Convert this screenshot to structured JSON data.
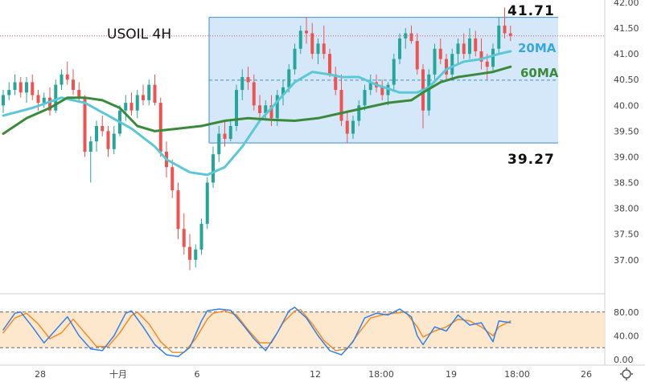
{
  "chart_data": {
    "type": "candlestick",
    "symbol_label": "USOIL 4H",
    "price_axis": {
      "min": 36.7,
      "max": 42.0,
      "ticks": [
        "42.00",
        "41.50",
        "41.00",
        "40.50",
        "40.00",
        "39.50",
        "39.00",
        "38.50",
        "38.00",
        "37.50",
        "37.00"
      ]
    },
    "time_axis": {
      "labels": [
        "28",
        "十月",
        "6",
        "12",
        "18:00",
        "19",
        "18:00",
        "26"
      ]
    },
    "range_box": {
      "top_label": "41.71",
      "bottom_label": "39.27",
      "top": 41.71,
      "bottom": 39.27
    },
    "current_price": 41.35,
    "ma_labels": {
      "ma20": "20MA",
      "ma60": "60MA"
    },
    "colors": {
      "up": "#26a69a",
      "down": "#ef5350",
      "ma20": "#5bc8d8",
      "ma60": "#3b8a3b",
      "box": "#cce4f8",
      "k_line": "#2f80ed",
      "d_line": "#f28c28"
    },
    "candles": [
      [
        40.0,
        40.3,
        39.85,
        40.2
      ],
      [
        40.2,
        40.45,
        40.1,
        40.3
      ],
      [
        40.3,
        40.6,
        40.2,
        40.45
      ],
      [
        40.45,
        40.55,
        40.15,
        40.25
      ],
      [
        40.25,
        40.55,
        40.05,
        40.45
      ],
      [
        40.45,
        40.6,
        40.1,
        40.2
      ],
      [
        40.2,
        40.3,
        39.9,
        40.05
      ],
      [
        40.05,
        40.25,
        39.95,
        40.15
      ],
      [
        40.15,
        40.35,
        39.8,
        39.9
      ],
      [
        39.9,
        40.5,
        39.85,
        40.4
      ],
      [
        40.4,
        40.7,
        40.3,
        40.6
      ],
      [
        40.6,
        40.85,
        40.4,
        40.5
      ],
      [
        40.5,
        40.7,
        40.2,
        40.3
      ],
      [
        40.3,
        40.45,
        40.05,
        40.15
      ],
      [
        40.15,
        40.2,
        39.0,
        39.1
      ],
      [
        39.1,
        39.4,
        38.5,
        39.3
      ],
      [
        39.3,
        39.7,
        39.1,
        39.6
      ],
      [
        39.6,
        39.8,
        39.4,
        39.5
      ],
      [
        39.5,
        39.6,
        39.0,
        39.15
      ],
      [
        39.15,
        39.6,
        39.05,
        39.45
      ],
      [
        39.45,
        40.0,
        39.4,
        39.9
      ],
      [
        39.9,
        40.2,
        39.7,
        40.05
      ],
      [
        40.05,
        40.25,
        39.8,
        39.9
      ],
      [
        39.9,
        40.3,
        39.75,
        40.2
      ],
      [
        40.2,
        40.4,
        40.0,
        40.1
      ],
      [
        40.1,
        40.5,
        40.0,
        40.4
      ],
      [
        40.4,
        40.6,
        40.0,
        40.05
      ],
      [
        40.05,
        40.15,
        39.0,
        39.1
      ],
      [
        39.1,
        39.3,
        38.6,
        38.8
      ],
      [
        38.8,
        38.95,
        38.2,
        38.35
      ],
      [
        38.35,
        38.5,
        37.4,
        37.6
      ],
      [
        37.6,
        37.9,
        37.1,
        37.25
      ],
      [
        37.25,
        37.5,
        36.8,
        37.0
      ],
      [
        37.0,
        37.3,
        36.85,
        37.2
      ],
      [
        37.2,
        37.8,
        37.1,
        37.7
      ],
      [
        37.7,
        38.6,
        37.6,
        38.5
      ],
      [
        38.5,
        39.2,
        38.4,
        39.05
      ],
      [
        39.05,
        39.6,
        38.9,
        39.45
      ],
      [
        39.45,
        39.7,
        39.2,
        39.35
      ],
      [
        39.35,
        39.7,
        39.3,
        39.6
      ],
      [
        39.6,
        40.4,
        39.5,
        40.3
      ],
      [
        40.3,
        40.7,
        40.1,
        40.55
      ],
      [
        40.55,
        40.75,
        40.3,
        40.45
      ],
      [
        40.45,
        40.6,
        39.9,
        40.0
      ],
      [
        40.0,
        40.2,
        39.7,
        39.85
      ],
      [
        39.85,
        40.1,
        39.7,
        40.0
      ],
      [
        40.0,
        40.2,
        39.6,
        39.75
      ],
      [
        39.75,
        40.3,
        39.6,
        40.2
      ],
      [
        40.2,
        40.5,
        40.0,
        40.35
      ],
      [
        40.35,
        40.8,
        40.25,
        40.7
      ],
      [
        40.7,
        41.2,
        40.6,
        41.1
      ],
      [
        41.1,
        41.55,
        41.0,
        41.45
      ],
      [
        41.45,
        41.71,
        41.2,
        41.4
      ],
      [
        41.4,
        41.6,
        40.9,
        41.0
      ],
      [
        41.0,
        41.3,
        40.8,
        41.2
      ],
      [
        41.2,
        41.55,
        40.9,
        41.0
      ],
      [
        41.0,
        41.1,
        40.55,
        40.6
      ],
      [
        40.6,
        40.75,
        40.2,
        40.3
      ],
      [
        40.3,
        40.6,
        39.6,
        39.7
      ],
      [
        39.7,
        39.9,
        39.27,
        39.45
      ],
      [
        39.45,
        39.8,
        39.35,
        39.7
      ],
      [
        39.7,
        40.1,
        39.6,
        40.0
      ],
      [
        40.0,
        40.4,
        39.9,
        40.3
      ],
      [
        40.3,
        40.6,
        40.2,
        40.45
      ],
      [
        40.45,
        40.6,
        40.25,
        40.35
      ],
      [
        40.35,
        40.5,
        40.1,
        40.2
      ],
      [
        40.2,
        40.45,
        40.0,
        40.4
      ],
      [
        40.4,
        41.0,
        40.3,
        40.9
      ],
      [
        40.9,
        41.4,
        40.8,
        41.3
      ],
      [
        41.3,
        41.5,
        41.1,
        41.4
      ],
      [
        41.4,
        41.55,
        41.2,
        41.25
      ],
      [
        41.25,
        41.4,
        40.6,
        40.7
      ],
      [
        40.7,
        40.8,
        39.55,
        39.9
      ],
      [
        39.9,
        40.7,
        39.8,
        40.6
      ],
      [
        40.6,
        41.2,
        40.5,
        41.1
      ],
      [
        41.1,
        41.3,
        40.8,
        40.9
      ],
      [
        40.9,
        41.0,
        40.5,
        40.6
      ],
      [
        40.6,
        41.1,
        40.5,
        41.0
      ],
      [
        41.0,
        41.3,
        40.8,
        41.2
      ],
      [
        41.2,
        41.4,
        40.9,
        41.0
      ],
      [
        41.0,
        41.5,
        40.9,
        41.3
      ],
      [
        41.3,
        41.45,
        40.95,
        41.05
      ],
      [
        41.05,
        41.3,
        40.7,
        40.85
      ],
      [
        40.85,
        41.0,
        40.5,
        40.75
      ],
      [
        40.75,
        41.2,
        40.65,
        41.1
      ],
      [
        41.1,
        41.71,
        41.0,
        41.55
      ],
      [
        41.55,
        41.9,
        41.3,
        41.4
      ],
      [
        41.4,
        41.55,
        41.25,
        41.35
      ]
    ],
    "ma20": [
      [
        0,
        39.8
      ],
      [
        5,
        39.95
      ],
      [
        10,
        40.15
      ],
      [
        14,
        40.05
      ],
      [
        18,
        39.8
      ],
      [
        22,
        39.55
      ],
      [
        26,
        39.2
      ],
      [
        28,
        38.95
      ],
      [
        32,
        38.7
      ],
      [
        35,
        38.65
      ],
      [
        38,
        38.8
      ],
      [
        41,
        39.2
      ],
      [
        44,
        39.7
      ],
      [
        48,
        40.2
      ],
      [
        50,
        40.45
      ],
      [
        53,
        40.65
      ],
      [
        56,
        40.6
      ],
      [
        58,
        40.55
      ],
      [
        61,
        40.55
      ],
      [
        64,
        40.4
      ],
      [
        68,
        40.25
      ],
      [
        71,
        40.25
      ],
      [
        73,
        40.35
      ],
      [
        76,
        40.7
      ],
      [
        79,
        40.85
      ],
      [
        82,
        40.9
      ],
      [
        85,
        41.0
      ],
      [
        87,
        41.05
      ]
    ],
    "ma60": [
      [
        0,
        39.45
      ],
      [
        4,
        39.75
      ],
      [
        8,
        39.95
      ],
      [
        11,
        40.15
      ],
      [
        14,
        40.15
      ],
      [
        17,
        40.1
      ],
      [
        20,
        39.95
      ],
      [
        23,
        39.6
      ],
      [
        26,
        39.5
      ],
      [
        30,
        39.55
      ],
      [
        34,
        39.6
      ],
      [
        38,
        39.7
      ],
      [
        42,
        39.75
      ],
      [
        46,
        39.72
      ],
      [
        50,
        39.7
      ],
      [
        54,
        39.75
      ],
      [
        58,
        39.85
      ],
      [
        62,
        39.95
      ],
      [
        66,
        40.05
      ],
      [
        70,
        40.1
      ],
      [
        72,
        40.25
      ],
      [
        75,
        40.45
      ],
      [
        78,
        40.55
      ],
      [
        81,
        40.6
      ],
      [
        84,
        40.65
      ],
      [
        87,
        40.75
      ]
    ],
    "stochastic": {
      "levels": [
        {
          "value": 80,
          "label": "80.00"
        },
        {
          "value": 40,
          "label": "40.00"
        },
        {
          "value": 0,
          "label": "0.00"
        }
      ],
      "bands": [
        80,
        20
      ],
      "k": [
        [
          0,
          50
        ],
        [
          2,
          78
        ],
        [
          3,
          80
        ],
        [
          5,
          55
        ],
        [
          7,
          28
        ],
        [
          9,
          50
        ],
        [
          11,
          72
        ],
        [
          13,
          40
        ],
        [
          15,
          18
        ],
        [
          17,
          15
        ],
        [
          19,
          40
        ],
        [
          21,
          78
        ],
        [
          22,
          82
        ],
        [
          24,
          55
        ],
        [
          26,
          25
        ],
        [
          28,
          8
        ],
        [
          30,
          5
        ],
        [
          32,
          20
        ],
        [
          34,
          65
        ],
        [
          35,
          82
        ],
        [
          37,
          85
        ],
        [
          39,
          83
        ],
        [
          41,
          60
        ],
        [
          43,
          35
        ],
        [
          45,
          15
        ],
        [
          47,
          45
        ],
        [
          49,
          82
        ],
        [
          50,
          88
        ],
        [
          52,
          70
        ],
        [
          54,
          40
        ],
        [
          56,
          15
        ],
        [
          58,
          8
        ],
        [
          60,
          30
        ],
        [
          62,
          70
        ],
        [
          64,
          78
        ],
        [
          66,
          75
        ],
        [
          68,
          85
        ],
        [
          70,
          72
        ],
        [
          71,
          40
        ],
        [
          72,
          25
        ],
        [
          74,
          55
        ],
        [
          76,
          48
        ],
        [
          78,
          75
        ],
        [
          80,
          58
        ],
        [
          82,
          62
        ],
        [
          84,
          30
        ],
        [
          85,
          65
        ],
        [
          87,
          62
        ]
      ],
      "d": [
        [
          0,
          45
        ],
        [
          2,
          70
        ],
        [
          4,
          78
        ],
        [
          6,
          60
        ],
        [
          8,
          35
        ],
        [
          10,
          45
        ],
        [
          12,
          68
        ],
        [
          14,
          45
        ],
        [
          16,
          22
        ],
        [
          18,
          22
        ],
        [
          20,
          45
        ],
        [
          22,
          74
        ],
        [
          23,
          80
        ],
        [
          25,
          60
        ],
        [
          27,
          30
        ],
        [
          29,
          12
        ],
        [
          31,
          12
        ],
        [
          33,
          35
        ],
        [
          35,
          68
        ],
        [
          36,
          78
        ],
        [
          38,
          82
        ],
        [
          40,
          75
        ],
        [
          42,
          50
        ],
        [
          44,
          28
        ],
        [
          46,
          28
        ],
        [
          48,
          62
        ],
        [
          50,
          82
        ],
        [
          51,
          84
        ],
        [
          53,
          60
        ],
        [
          55,
          32
        ],
        [
          57,
          15
        ],
        [
          59,
          18
        ],
        [
          61,
          45
        ],
        [
          63,
          70
        ],
        [
          65,
          75
        ],
        [
          67,
          78
        ],
        [
          69,
          80
        ],
        [
          71,
          55
        ],
        [
          72,
          38
        ],
        [
          74,
          48
        ],
        [
          76,
          55
        ],
        [
          78,
          68
        ],
        [
          80,
          65
        ],
        [
          82,
          55
        ],
        [
          84,
          40
        ],
        [
          85,
          55
        ],
        [
          87,
          65
        ]
      ]
    }
  }
}
